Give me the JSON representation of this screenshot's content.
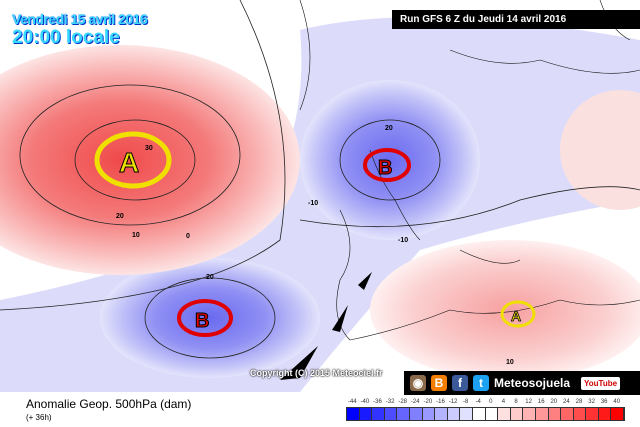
{
  "header": {
    "date": "Vendredi 15 avril 2016",
    "time": "20:00 locale",
    "run": "Run GFS 6 Z du Jeudi 14 avril 2016"
  },
  "map": {
    "centers": [
      {
        "label": "A",
        "type": "high",
        "ring_color": "#f0e000"
      },
      {
        "label": "B",
        "type": "low",
        "ring_color": "#e00000"
      },
      {
        "label": "B",
        "type": "low",
        "ring_color": "#e00000"
      },
      {
        "label": "A",
        "type": "high",
        "ring_color": "#f0e000"
      }
    ],
    "contour_labels": [
      "30",
      "20",
      "10",
      "0",
      "20",
      "-10",
      "-10",
      "20",
      "10"
    ]
  },
  "footer": {
    "copyright": "Copyright (C) 2015 Meteociel.fr",
    "brand": "Meteosojuela",
    "youtube": "YouTube",
    "title": "Anomalie Geop. 500hPa (dam)",
    "lead": "(+ 36h)"
  },
  "legend": {
    "labels": [
      "-44",
      "-40",
      "-36",
      "-32",
      "-28",
      "-24",
      "-20",
      "-16",
      "-12",
      "-8",
      "-4",
      "0",
      "4",
      "8",
      "12",
      "16",
      "20",
      "24",
      "28",
      "32",
      "36",
      "40"
    ],
    "colors": [
      "#0000ff",
      "#1a1aff",
      "#3333ff",
      "#4d4dff",
      "#6666ff",
      "#8080ff",
      "#9999ff",
      "#b3b3ff",
      "#ccccff",
      "#e0e0ff",
      "#ffffff",
      "#ffffff",
      "#ffe0e0",
      "#ffcccc",
      "#ffb3b3",
      "#ff9999",
      "#ff8080",
      "#ff6666",
      "#ff4d4d",
      "#ff3333",
      "#ff1a1a",
      "#ff0000"
    ]
  }
}
